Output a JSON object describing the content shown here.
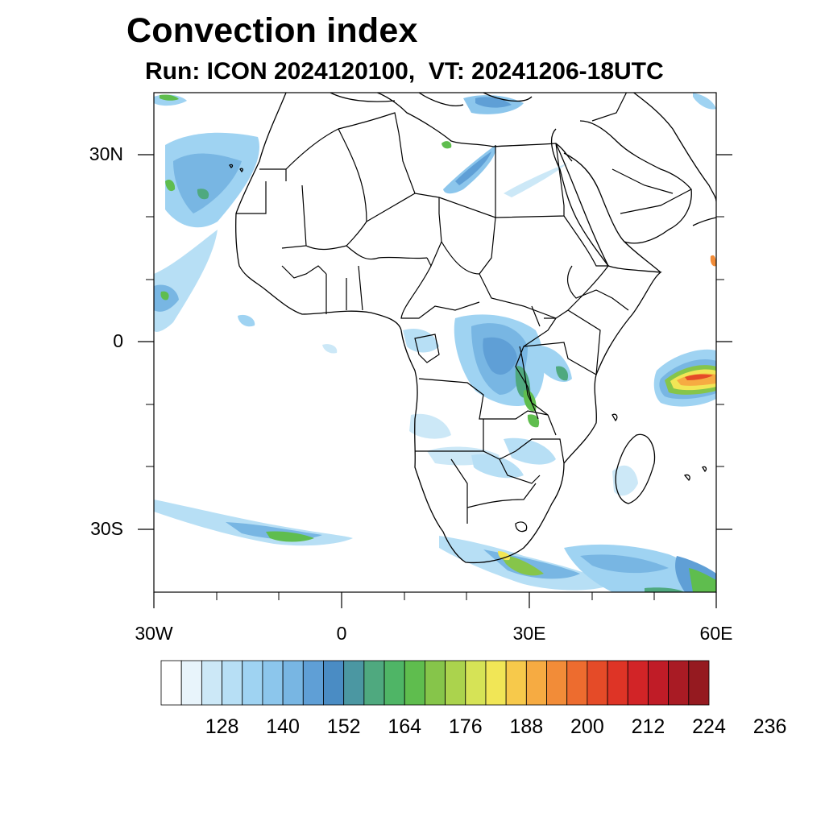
{
  "title": "Convection index",
  "subtitle": "Run: ICON 2024120100,  VT: 20241206-18UTC",
  "map": {
    "extent": {
      "lon": [
        -30,
        60
      ],
      "lat": [
        -40,
        40
      ]
    },
    "lat_labels": [
      "30N",
      "0",
      "30S"
    ],
    "lon_labels": [
      "30W",
      "0",
      "30E",
      "60E"
    ]
  },
  "colorbar": {
    "tick_labels": [
      "128",
      "140",
      "152",
      "164",
      "176",
      "188",
      "200",
      "212",
      "224",
      "236"
    ],
    "colors": [
      "#ffffff",
      "#e8f4fb",
      "#cce8f7",
      "#b7dff5",
      "#9fd3f2",
      "#8cc6ec",
      "#78b6e3",
      "#5f9fd6",
      "#4a8cc4",
      "#4b97a2",
      "#4fa97f",
      "#4fb566",
      "#5fbd4e",
      "#86c54a",
      "#abd34d",
      "#d6e356",
      "#f1e656",
      "#f7c94b",
      "#f6ab42",
      "#f28c38",
      "#ed6c2f",
      "#e54b28",
      "#de3426",
      "#d22427",
      "#c01c27",
      "#a91b24",
      "#951a20"
    ]
  },
  "colors": {
    "land_outline": "#000000",
    "background": "#ffffff"
  }
}
